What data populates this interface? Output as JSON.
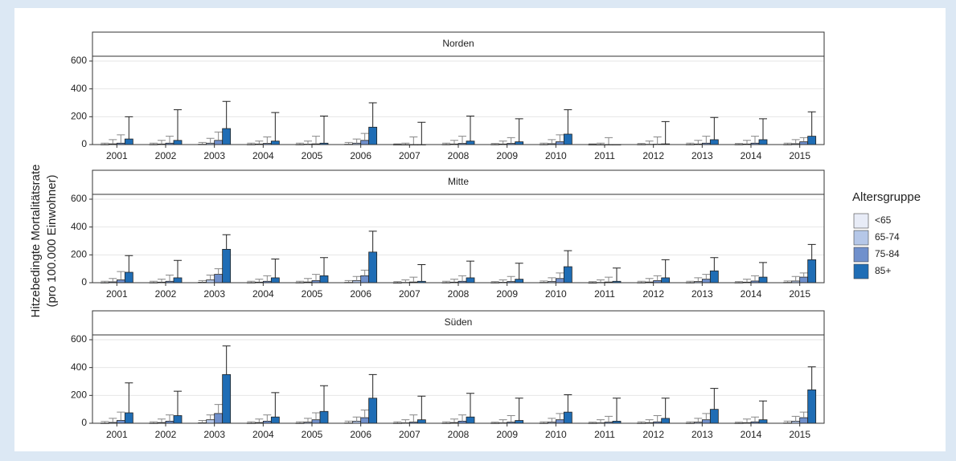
{
  "y_label_line1": "Hitzebedingte Mortalitätsrate",
  "y_label_line2": "(pro 100.000 Einwohner)",
  "legend_title": "Altersgruppe",
  "chart_data": [
    {
      "type": "bar",
      "title": "Norden",
      "categories": [
        "2001",
        "2002",
        "2003",
        "2004",
        "2005",
        "2006",
        "2007",
        "2008",
        "2009",
        "2010",
        "2011",
        "2012",
        "2013",
        "2014",
        "2015"
      ],
      "ylim": [
        0,
        600
      ],
      "yticks": [
        0,
        200,
        400,
        600
      ],
      "grid": true,
      "series": [
        {
          "name": "<65",
          "color": "#e8ecf7",
          "values": [
            1,
            1,
            2,
            1,
            1,
            2,
            0,
            1,
            1,
            1,
            0,
            1,
            1,
            1,
            1
          ],
          "upper": [
            10,
            10,
            15,
            10,
            10,
            15,
            5,
            10,
            8,
            10,
            5,
            8,
            10,
            8,
            10
          ]
        },
        {
          "name": "65-74",
          "color": "#b5c7e8",
          "values": [
            5,
            4,
            10,
            4,
            3,
            10,
            0,
            4,
            4,
            6,
            0,
            2,
            4,
            4,
            6
          ],
          "upper": [
            35,
            30,
            45,
            25,
            25,
            40,
            10,
            30,
            25,
            35,
            10,
            25,
            30,
            30,
            35
          ]
        },
        {
          "name": "75-84",
          "color": "#7090cc",
          "values": [
            10,
            10,
            30,
            8,
            5,
            30,
            0,
            8,
            8,
            20,
            0,
            3,
            10,
            10,
            20
          ],
          "upper": [
            70,
            60,
            90,
            55,
            60,
            80,
            55,
            60,
            50,
            70,
            50,
            55,
            60,
            60,
            50
          ]
        },
        {
          "name": "85+",
          "color": "#1f6db5",
          "values": [
            40,
            30,
            115,
            25,
            10,
            125,
            0,
            25,
            20,
            75,
            0,
            5,
            35,
            35,
            60
          ],
          "upper": [
            200,
            250,
            310,
            230,
            205,
            300,
            160,
            205,
            185,
            250,
            0,
            165,
            195,
            185,
            235
          ]
        }
      ]
    },
    {
      "type": "bar",
      "title": "Mitte",
      "categories": [
        "2001",
        "2002",
        "2003",
        "2004",
        "2005",
        "2006",
        "2007",
        "2008",
        "2009",
        "2010",
        "2011",
        "2012",
        "2013",
        "2014",
        "2015"
      ],
      "ylim": [
        0,
        600
      ],
      "yticks": [
        0,
        200,
        400,
        600
      ],
      "grid": true,
      "series": [
        {
          "name": "<65",
          "color": "#e8ecf7",
          "values": [
            1,
            1,
            3,
            1,
            1,
            2,
            0,
            1,
            1,
            2,
            0,
            1,
            1,
            1,
            2
          ],
          "upper": [
            10,
            10,
            15,
            10,
            10,
            15,
            8,
            10,
            8,
            12,
            8,
            10,
            10,
            8,
            12
          ]
        },
        {
          "name": "65-74",
          "color": "#b5c7e8",
          "values": [
            6,
            4,
            20,
            4,
            5,
            15,
            2,
            4,
            3,
            8,
            2,
            5,
            8,
            4,
            12
          ],
          "upper": [
            30,
            25,
            55,
            25,
            30,
            45,
            20,
            25,
            20,
            35,
            20,
            30,
            35,
            25,
            45
          ]
        },
        {
          "name": "75-84",
          "color": "#7090cc",
          "values": [
            20,
            10,
            60,
            10,
            15,
            50,
            5,
            10,
            8,
            30,
            5,
            15,
            25,
            12,
            40
          ],
          "upper": [
            80,
            55,
            100,
            50,
            60,
            90,
            40,
            50,
            45,
            70,
            40,
            50,
            60,
            50,
            70
          ]
        },
        {
          "name": "85+",
          "color": "#1f6db5",
          "values": [
            75,
            35,
            240,
            35,
            50,
            220,
            10,
            35,
            25,
            115,
            10,
            35,
            85,
            40,
            165
          ],
          "upper": [
            195,
            160,
            345,
            170,
            180,
            370,
            130,
            155,
            140,
            230,
            105,
            165,
            180,
            145,
            275
          ]
        }
      ]
    },
    {
      "type": "bar",
      "title": "Süden",
      "categories": [
        "2001",
        "2002",
        "2003",
        "2004",
        "2005",
        "2006",
        "2007",
        "2008",
        "2009",
        "2010",
        "2011",
        "2012",
        "2013",
        "2014",
        "2015"
      ],
      "ylim": [
        0,
        600
      ],
      "yticks": [
        0,
        200,
        400,
        600
      ],
      "grid": true,
      "series": [
        {
          "name": "<65",
          "color": "#e8ecf7",
          "values": [
            1,
            1,
            3,
            1,
            1,
            2,
            1,
            1,
            1,
            1,
            1,
            1,
            1,
            1,
            2
          ],
          "upper": [
            12,
            10,
            20,
            10,
            10,
            15,
            10,
            10,
            8,
            10,
            8,
            10,
            10,
            8,
            15
          ]
        },
        {
          "name": "65-74",
          "color": "#b5c7e8",
          "values": [
            6,
            5,
            25,
            5,
            8,
            15,
            3,
            5,
            3,
            8,
            3,
            4,
            8,
            4,
            15
          ],
          "upper": [
            35,
            30,
            60,
            30,
            35,
            45,
            25,
            30,
            25,
            35,
            25,
            25,
            35,
            30,
            50
          ]
        },
        {
          "name": "75-84",
          "color": "#7090cc",
          "values": [
            20,
            15,
            70,
            15,
            25,
            40,
            8,
            15,
            8,
            25,
            8,
            10,
            25,
            10,
            40
          ],
          "upper": [
            80,
            60,
            135,
            60,
            75,
            95,
            60,
            60,
            55,
            70,
            50,
            55,
            70,
            45,
            80
          ]
        },
        {
          "name": "85+",
          "color": "#1f6db5",
          "values": [
            75,
            55,
            350,
            45,
            85,
            180,
            25,
            45,
            20,
            80,
            15,
            35,
            100,
            25,
            240
          ],
          "upper": [
            290,
            230,
            555,
            220,
            270,
            350,
            195,
            215,
            180,
            205,
            180,
            180,
            250,
            160,
            405
          ]
        }
      ]
    }
  ]
}
